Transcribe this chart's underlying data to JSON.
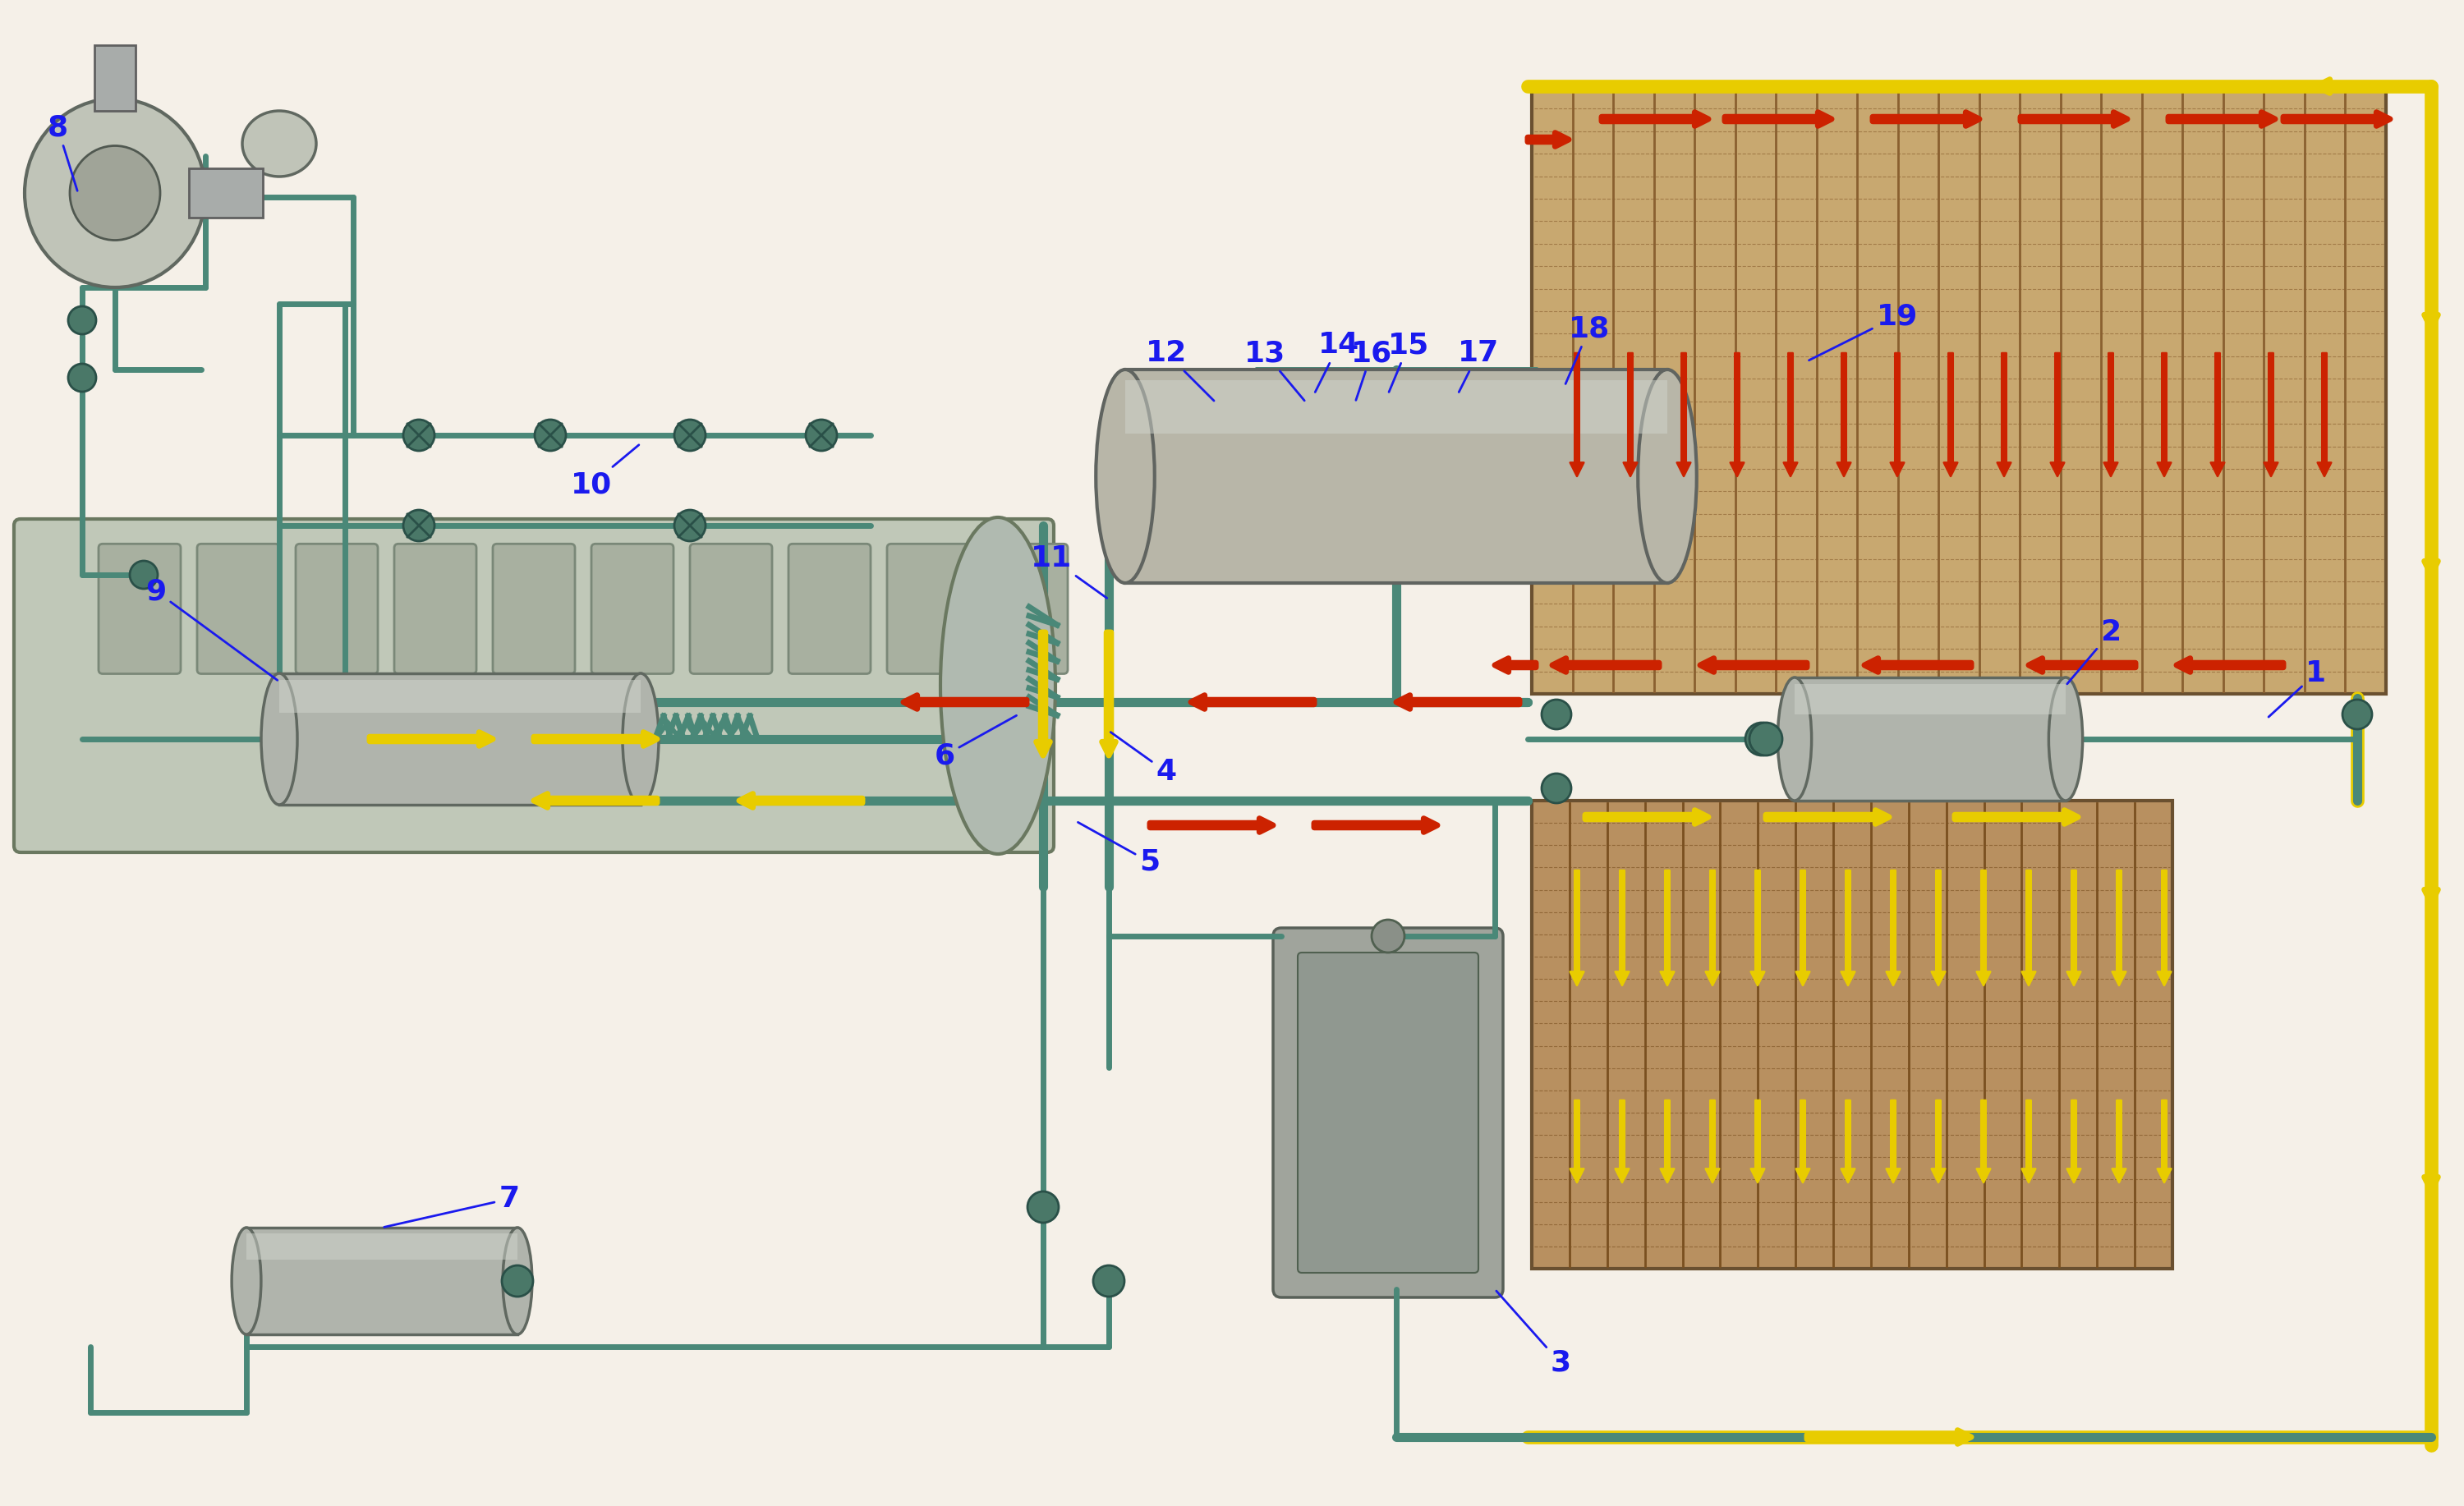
{
  "bg": "#f5f0e8",
  "pipe_color": "#4a8878",
  "pipe_lw": 8,
  "pipe_lw2": 5,
  "pipe_lw3": 4,
  "red": "#cc2200",
  "yellow": "#e8cc00",
  "blue_label": "#1a1aee",
  "label_fs": 26,
  "comp_fill": "#b0b8b0",
  "comp_edge": "#506060",
  "rad1_fill": "#c0a870",
  "rad2_fill": "#b09060",
  "rad_line": "#7a5a30",
  "engine_fill": "#c0c8b8",
  "engine_edge": "#6a7860",
  "cyl_fill": "#b8bcb0",
  "cyl_edge": "#5a6858"
}
